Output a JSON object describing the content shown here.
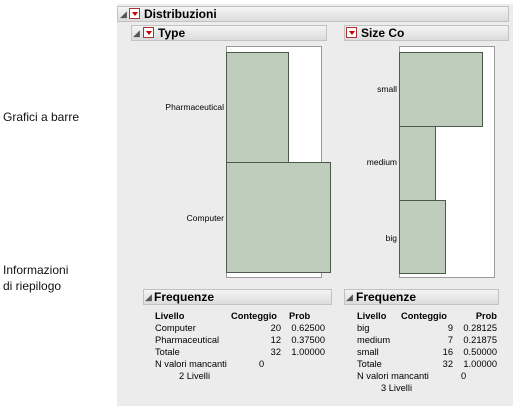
{
  "callouts": {
    "bar_charts": "Grafici a barre",
    "summary_line1": "Informazioni",
    "summary_line2": "di riepilogo"
  },
  "report": {
    "title": "Distribuzioni",
    "type_panel": {
      "title": "Type",
      "categories": [
        {
          "label": "Pharmaceutical",
          "count": 12,
          "prob": 0.375
        },
        {
          "label": "Computer",
          "count": 20,
          "prob": 0.625
        }
      ],
      "freq_title": "Frequenze",
      "columns": {
        "level": "Livello",
        "count": "Conteggio",
        "prob": "Prob"
      },
      "rows": [
        {
          "level": "Computer",
          "count": "20",
          "prob": "0.62500"
        },
        {
          "level": "Pharmaceutical",
          "count": "12",
          "prob": "0.37500"
        },
        {
          "level": "Totale",
          "count": "32",
          "prob": "1.00000"
        }
      ],
      "missing_label": "N valori mancanti",
      "missing_value": "0",
      "levels_text": "2 Livelli"
    },
    "size_panel": {
      "title": "Size Co",
      "categories": [
        {
          "label": "small",
          "count": 16,
          "prob": 0.5
        },
        {
          "label": "medium",
          "count": 7,
          "prob": 0.21875
        },
        {
          "label": "big",
          "count": 9,
          "prob": 0.28125
        }
      ],
      "freq_title": "Frequenze",
      "columns": {
        "level": "Livello",
        "count": "Conteggio",
        "prob": "Prob"
      },
      "rows": [
        {
          "level": "big",
          "count": "9",
          "prob": "0.28125"
        },
        {
          "level": "medium",
          "count": "7",
          "prob": "0.21875"
        },
        {
          "level": "small",
          "count": "16",
          "prob": "0.50000"
        },
        {
          "level": "Totale",
          "count": "32",
          "prob": "1.00000"
        }
      ],
      "missing_label": "N valori mancanti",
      "missing_value": "0",
      "levels_text": "3 Livelli"
    }
  },
  "colors": {
    "bar_fill": "#bfcdbd",
    "bar_stroke": "#4c5a4c",
    "panel_bg": "#ececec",
    "red_button": "#cc0000"
  }
}
